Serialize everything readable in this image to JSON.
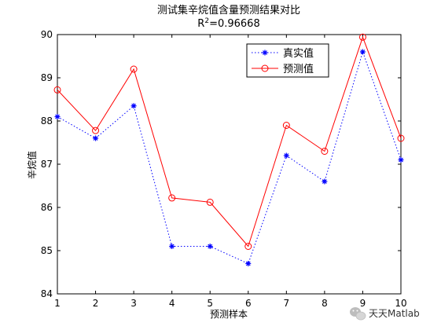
{
  "chart_data": {
    "type": "line",
    "title": "测试集辛烷值含量预测结果对比",
    "subtitle_prefix": "R",
    "subtitle_sup": "2",
    "subtitle_suffix": "=0.96668",
    "xlabel": "预测样本",
    "ylabel": "辛烷值",
    "xlim": [
      1,
      10
    ],
    "ylim": [
      84,
      90
    ],
    "xticks": [
      1,
      2,
      3,
      4,
      5,
      6,
      7,
      8,
      9,
      10
    ],
    "yticks": [
      84,
      85,
      86,
      87,
      88,
      89,
      90
    ],
    "grid": false,
    "legend_position": "top-right",
    "x": [
      1,
      2,
      3,
      4,
      5,
      6,
      7,
      8,
      9,
      10
    ],
    "series": [
      {
        "name": "真实值",
        "values": [
          88.1,
          87.6,
          88.35,
          85.1,
          85.1,
          84.7,
          87.2,
          86.6,
          89.6,
          87.1
        ],
        "color": "#0000ff",
        "line_style": "dotted",
        "marker": "asterisk"
      },
      {
        "name": "预测值",
        "values": [
          88.72,
          87.78,
          89.2,
          86.22,
          86.12,
          85.1,
          87.9,
          87.3,
          89.94,
          87.6
        ],
        "color": "#ff0000",
        "line_style": "solid",
        "marker": "circle"
      }
    ]
  },
  "watermark": {
    "text": "天天Matlab",
    "icon": "wechat-icon"
  }
}
